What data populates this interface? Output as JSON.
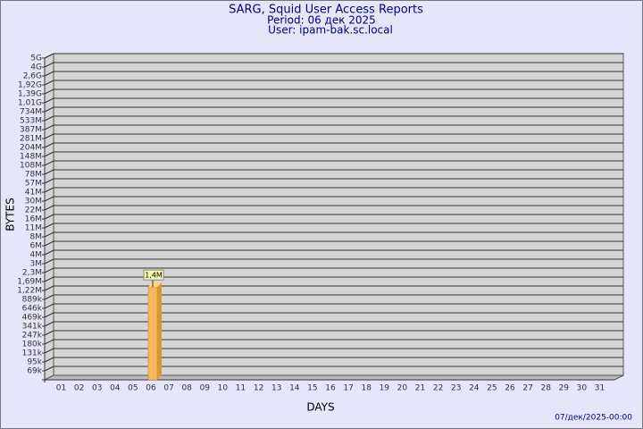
{
  "chart_data": {
    "type": "bar",
    "title": "SARG, Squid User Access Reports",
    "subtitle": "Period: 06 дек 2025",
    "user": "User: ipam-bak.sc.local",
    "ylabel": "BYTES",
    "xlabel": "DAYS",
    "footer": "07/дек/2025-00:00",
    "color": "#f7b85c",
    "side_color": "#d9982f",
    "plot_color": "#d4d4d4",
    "categories": [
      "01",
      "02",
      "03",
      "04",
      "05",
      "06",
      "07",
      "08",
      "09",
      "10",
      "11",
      "12",
      "13",
      "14",
      "15",
      "16",
      "17",
      "18",
      "19",
      "20",
      "21",
      "22",
      "23",
      "24",
      "25",
      "26",
      "27",
      "28",
      "29",
      "30",
      "31"
    ],
    "values": [
      null,
      null,
      null,
      null,
      null,
      1400000,
      null,
      null,
      null,
      null,
      null,
      null,
      null,
      null,
      null,
      null,
      null,
      null,
      null,
      null,
      null,
      null,
      null,
      null,
      null,
      null,
      null,
      null,
      null,
      null,
      null
    ],
    "value_labels": [
      null,
      null,
      null,
      null,
      null,
      "1,4M",
      null,
      null,
      null,
      null,
      null,
      null,
      null,
      null,
      null,
      null,
      null,
      null,
      null,
      null,
      null,
      null,
      null,
      null,
      null,
      null,
      null,
      null,
      null,
      null,
      null
    ],
    "ylim": [
      0,
      5000000000
    ],
    "yticks": [
      {
        "value": 5000000000,
        "label": "5G"
      },
      {
        "value": 4000000000,
        "label": "4G"
      },
      {
        "value": 2600000000,
        "label": "2,6G"
      },
      {
        "value": 1920000000,
        "label": "1,92G"
      },
      {
        "value": 1390000000,
        "label": "1,39G"
      },
      {
        "value": 1010000000,
        "label": "1,01G"
      },
      {
        "value": 734000000,
        "label": "734M"
      },
      {
        "value": 533000000,
        "label": "533M"
      },
      {
        "value": 387000000,
        "label": "387M"
      },
      {
        "value": 281000000,
        "label": "281M"
      },
      {
        "value": 204000000,
        "label": "204M"
      },
      {
        "value": 148000000,
        "label": "148M"
      },
      {
        "value": 108000000,
        "label": "108M"
      },
      {
        "value": 78000000,
        "label": "78M"
      },
      {
        "value": 57000000,
        "label": "57M"
      },
      {
        "value": 41000000,
        "label": "41M"
      },
      {
        "value": 30000000,
        "label": "30M"
      },
      {
        "value": 22000000,
        "label": "22M"
      },
      {
        "value": 16000000,
        "label": "16M"
      },
      {
        "value": 11000000,
        "label": "11M"
      },
      {
        "value": 8000000,
        "label": "8M"
      },
      {
        "value": 6000000,
        "label": "6M"
      },
      {
        "value": 4000000,
        "label": "4M"
      },
      {
        "value": 3000000,
        "label": "3M"
      },
      {
        "value": 2300000,
        "label": "2,3M"
      },
      {
        "value": 1690000,
        "label": "1,69M"
      },
      {
        "value": 1220000,
        "label": "1,22M"
      },
      {
        "value": 889000,
        "label": "889k"
      },
      {
        "value": 646000,
        "label": "646k"
      },
      {
        "value": 469000,
        "label": "469k"
      },
      {
        "value": 341000,
        "label": "341k"
      },
      {
        "value": 247000,
        "label": "247k"
      },
      {
        "value": 180000,
        "label": "180k"
      },
      {
        "value": 131000,
        "label": "131k"
      },
      {
        "value": 95000,
        "label": "95k"
      },
      {
        "value": 69000,
        "label": "69k"
      }
    ],
    "grid": true
  }
}
